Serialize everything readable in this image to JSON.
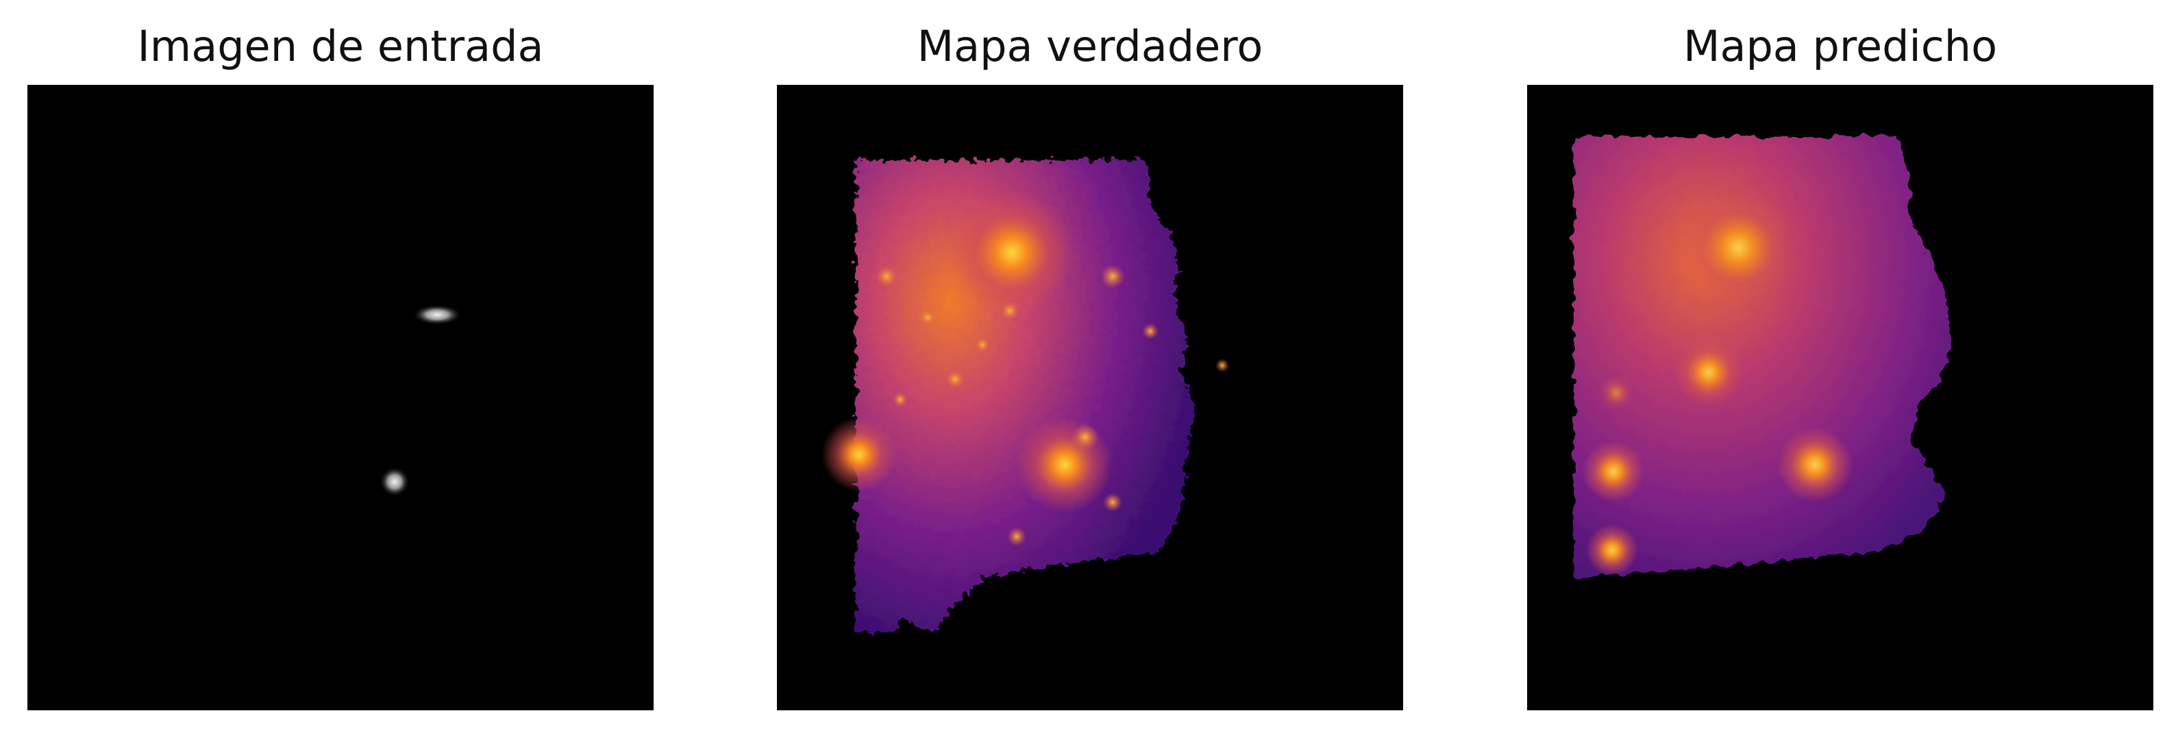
{
  "panels": [
    {
      "title": "Imagen de entrada"
    },
    {
      "title": "Mapa verdadero"
    },
    {
      "title": "Mapa predicho"
    }
  ],
  "colors": {
    "background": "#000000",
    "grayscale_source": "#ffffff",
    "inferno_dark": "#3d0f6e",
    "inferno_mid": "#b33a78",
    "inferno_bright": "#f57d15",
    "inferno_peak": "#fcd225"
  }
}
